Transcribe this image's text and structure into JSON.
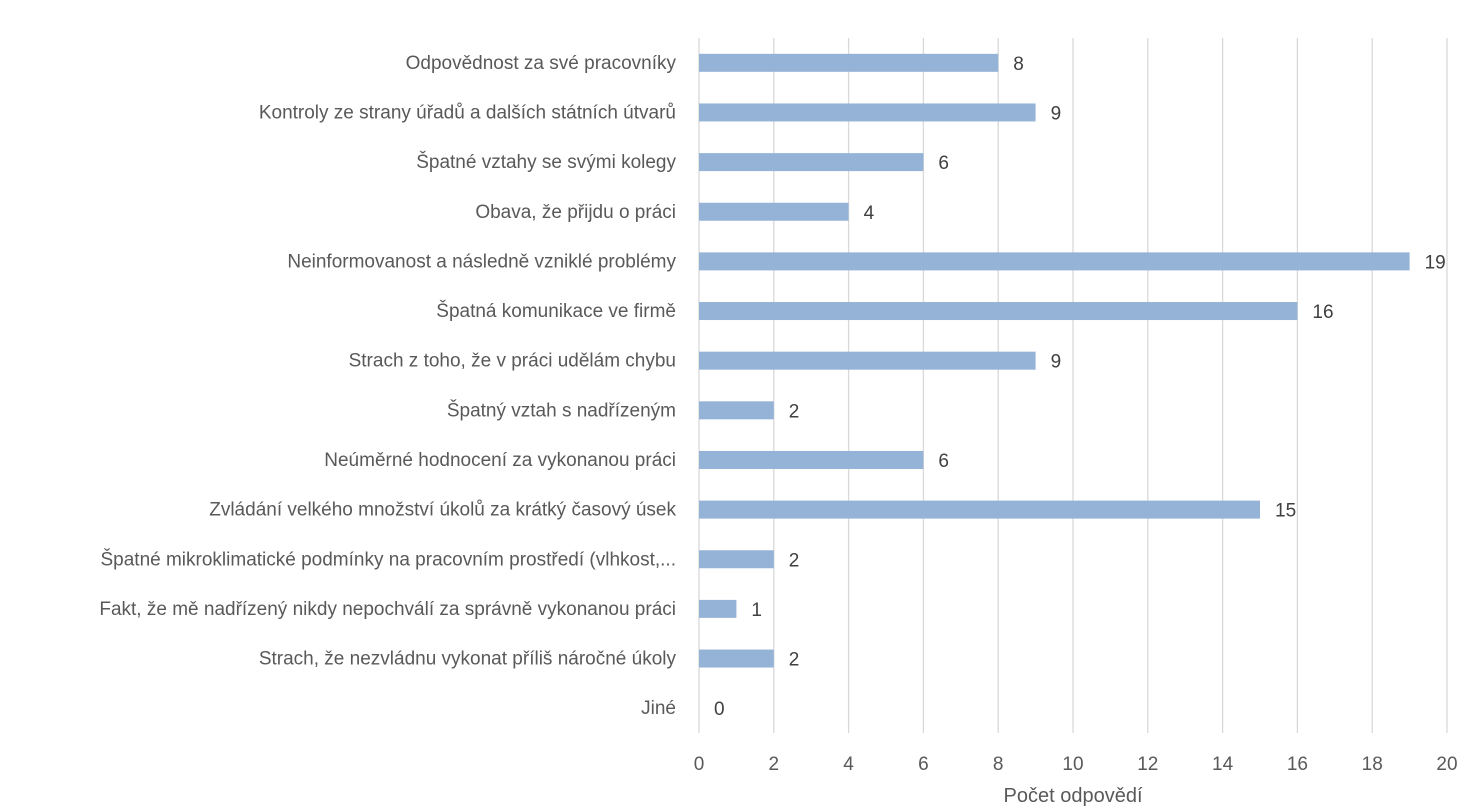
{
  "chart_data": {
    "type": "bar",
    "orientation": "horizontal",
    "title": "",
    "xlabel": "Počet odpovědí",
    "ylabel": "",
    "xlim": [
      0,
      20
    ],
    "xticks": [
      0,
      2,
      4,
      6,
      8,
      10,
      12,
      14,
      16,
      18,
      20
    ],
    "grid": true,
    "bar_color": "#95b3d7",
    "categories": [
      "Odpovědnost za své pracovníky",
      "Kontroly ze strany úřadů a dalších státních útvarů",
      "Špatné vztahy se svými kolegy",
      "Obava, že přijdu o práci",
      "Neinformovanost a následně vzniklé problémy",
      "Špatná komunikace ve firmě",
      "Strach z toho, že v práci udělám chybu",
      "Špatný vztah s nadřízeným",
      "Neúměrné hodnocení za vykonanou práci",
      "Zvládání velkého množství úkolů za krátký časový úsek",
      "Špatné mikroklimatické podmínky na pracovním prostředí (vlhkost,...",
      "Fakt, že mě nadřízený nikdy nepochválí za správně vykonanou práci",
      "Strach, že nezvládnu vykonat příliš náročné úkoly",
      "Jiné"
    ],
    "values": [
      8,
      9,
      6,
      4,
      19,
      16,
      9,
      2,
      6,
      15,
      2,
      1,
      2,
      0
    ]
  }
}
